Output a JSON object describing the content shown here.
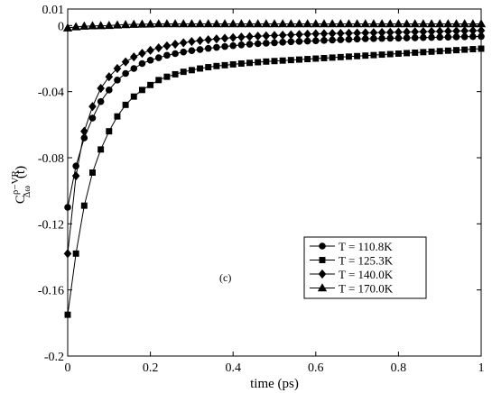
{
  "chart_data": {
    "type": "line",
    "xlabel": "time (ps)",
    "ylabel_main": "C",
    "ylabel_sup": "ρ−VR",
    "ylabel_sub": "Δω",
    "ylabel_arg": "(t)",
    "annotation": "(c)",
    "xlim": [
      0,
      1
    ],
    "ylim": [
      -0.2,
      0.01
    ],
    "x_ticks": [
      0,
      0.2,
      0.4,
      0.6,
      0.8,
      1
    ],
    "x_tick_labels": [
      "0",
      "0.2",
      "0.4",
      "0.6",
      "0.8",
      "1"
    ],
    "y_ticks": [
      0.01,
      0,
      -0.04,
      -0.08,
      -0.12,
      -0.16,
      -0.2
    ],
    "y_tick_labels": [
      "0.01",
      "0",
      "-0.04",
      "-0.08",
      "-0.12",
      "-0.16",
      "-0.2"
    ],
    "grid": false,
    "legend_position": "bottom-right",
    "x": [
      0,
      0.02,
      0.04,
      0.06,
      0.08,
      0.1,
      0.12,
      0.14,
      0.16,
      0.18,
      0.2,
      0.22,
      0.24,
      0.26,
      0.28,
      0.3,
      0.32,
      0.34,
      0.36,
      0.38,
      0.4,
      0.42,
      0.44,
      0.46,
      0.48,
      0.5,
      0.52,
      0.54,
      0.56,
      0.58,
      0.6,
      0.62,
      0.64,
      0.66,
      0.68,
      0.7,
      0.72,
      0.74,
      0.76,
      0.78,
      0.8,
      0.82,
      0.84,
      0.86,
      0.88,
      0.9,
      0.92,
      0.94,
      0.96,
      0.98,
      1.0
    ],
    "series": [
      {
        "name": "T = 110.8K",
        "marker": "circle",
        "values": [
          -0.11,
          -0.085,
          -0.068,
          -0.056,
          -0.046,
          -0.039,
          -0.033,
          -0.029,
          -0.026,
          -0.023,
          -0.021,
          -0.0195,
          -0.018,
          -0.017,
          -0.016,
          -0.0152,
          -0.0145,
          -0.0138,
          -0.0132,
          -0.0127,
          -0.0122,
          -0.0117,
          -0.0113,
          -0.011,
          -0.0107,
          -0.0104,
          -0.0101,
          -0.0098,
          -0.0096,
          -0.0094,
          -0.0092,
          -0.009,
          -0.0088,
          -0.0086,
          -0.0084,
          -0.0082,
          -0.008,
          -0.0079,
          -0.0078,
          -0.0077,
          -0.0076,
          -0.0075,
          -0.0074,
          -0.0073,
          -0.0072,
          -0.0071,
          -0.007,
          -0.0069,
          -0.0068,
          -0.0067,
          -0.0066
        ]
      },
      {
        "name": "T = 125.3K",
        "marker": "square",
        "values": [
          -0.175,
          -0.138,
          -0.109,
          -0.089,
          -0.075,
          -0.064,
          -0.055,
          -0.048,
          -0.043,
          -0.039,
          -0.036,
          -0.033,
          -0.031,
          -0.0295,
          -0.028,
          -0.027,
          -0.026,
          -0.0252,
          -0.0245,
          -0.024,
          -0.0235,
          -0.023,
          -0.0226,
          -0.0222,
          -0.0218,
          -0.0215,
          -0.0212,
          -0.0209,
          -0.0206,
          -0.0203,
          -0.02,
          -0.0197,
          -0.0194,
          -0.0191,
          -0.0188,
          -0.0185,
          -0.0182,
          -0.0179,
          -0.0176,
          -0.0173,
          -0.017,
          -0.0167,
          -0.0164,
          -0.0161,
          -0.0158,
          -0.0155,
          -0.0152,
          -0.0149,
          -0.0146,
          -0.0143,
          -0.014
        ]
      },
      {
        "name": "T = 140.0K",
        "marker": "diamond",
        "values": [
          -0.138,
          -0.091,
          -0.064,
          -0.049,
          -0.038,
          -0.031,
          -0.026,
          -0.022,
          -0.019,
          -0.0168,
          -0.015,
          -0.0135,
          -0.0123,
          -0.0113,
          -0.0104,
          -0.0097,
          -0.0091,
          -0.0086,
          -0.0081,
          -0.0077,
          -0.0073,
          -0.007,
          -0.0067,
          -0.0064,
          -0.0062,
          -0.006,
          -0.0058,
          -0.0056,
          -0.0054,
          -0.0052,
          -0.005,
          -0.0049,
          -0.0048,
          -0.0047,
          -0.0046,
          -0.0045,
          -0.0044,
          -0.0043,
          -0.0042,
          -0.0041,
          -0.004,
          -0.0039,
          -0.0038,
          -0.0037,
          -0.0036,
          -0.0035,
          -0.0034,
          -0.0033,
          -0.0032,
          -0.0031,
          -0.003
        ]
      },
      {
        "name": "T = 170.0K",
        "marker": "triangle",
        "values": [
          -0.0015,
          -0.0008,
          -0.0004,
          -0.0002,
          -0.0001,
          0.0,
          0.0003,
          0.0005,
          0.0007,
          0.0008,
          0.0009,
          0.001,
          0.001,
          0.001,
          0.001,
          0.001,
          0.001,
          0.001,
          0.001,
          0.001,
          0.001,
          0.001,
          0.001,
          0.001,
          0.001,
          0.001,
          0.001,
          0.001,
          0.001,
          0.001,
          0.001,
          0.001,
          0.001,
          0.001,
          0.001,
          0.001,
          0.001,
          0.001,
          0.001,
          0.001,
          0.001,
          0.001,
          0.001,
          0.001,
          0.001,
          0.001,
          0.001,
          0.001,
          0.001,
          0.001,
          0.001
        ]
      }
    ]
  }
}
